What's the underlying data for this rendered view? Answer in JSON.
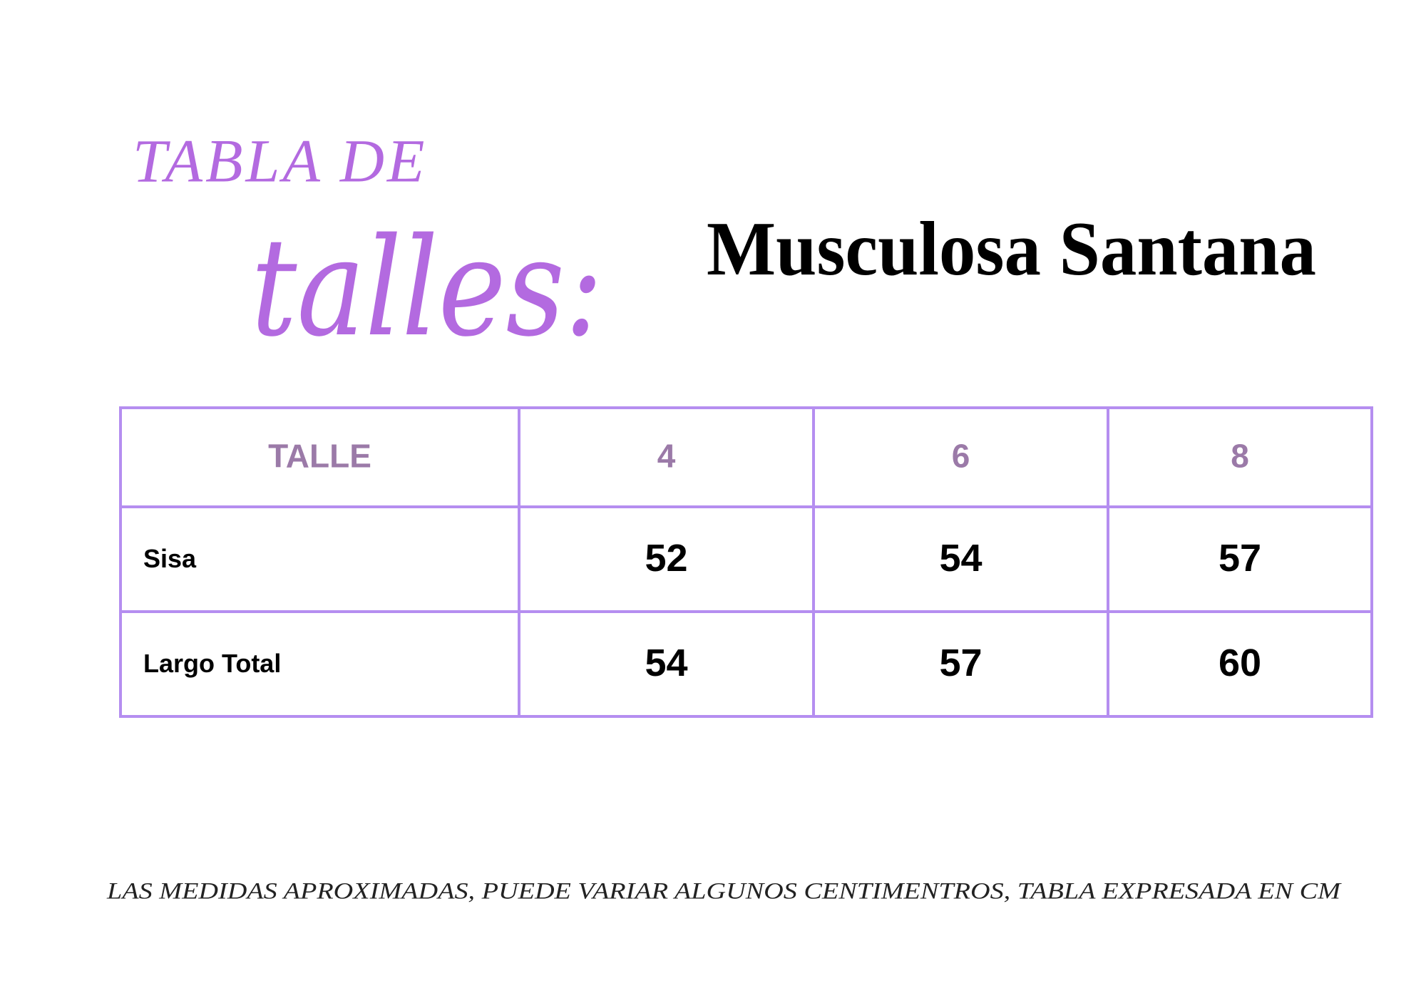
{
  "header": {
    "title_line1": "TABLA DE",
    "title_line2": "talles:",
    "product": "Musculosa Santana"
  },
  "table": {
    "header": [
      "TALLE",
      "4",
      "6",
      "8"
    ],
    "rows": [
      [
        "Sisa",
        "52",
        "54",
        "57"
      ],
      [
        "Largo Total",
        "54",
        "57",
        "60"
      ]
    ]
  },
  "footer": {
    "note": "LAS MEDIDAS APROXIMADAS, PUEDE VARIAR ALGUNOS CENTIMENTROS, TABLA EXPRESADA EN CM"
  }
}
